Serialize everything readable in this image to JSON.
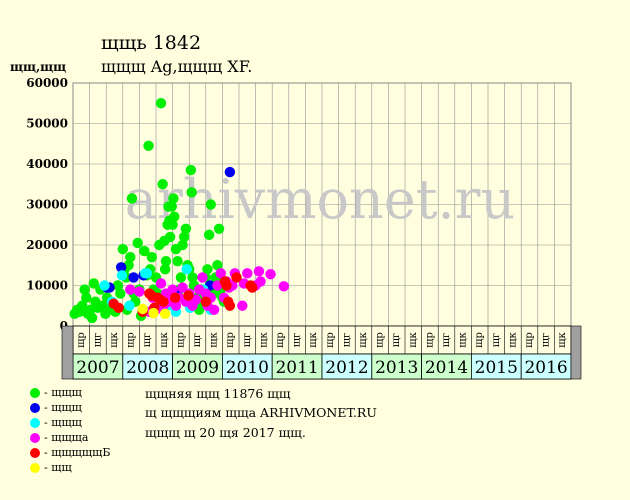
{
  "header": {
    "title": "щщь 1842",
    "subtitle": "щщщ Ag,щщщ XF.",
    "ylabel": "щщ,щщ"
  },
  "legend": [
    {
      "label": "- щщщ",
      "color": "#00ee00",
      "icon": "green-dot"
    },
    {
      "label": "- щщщ",
      "color": "#0000ee",
      "icon": "blue-dot"
    },
    {
      "label": "- щщщ",
      "color": "#00ffff",
      "icon": "cyan-dot"
    },
    {
      "label": "- щщща",
      "color": "#ff00ff",
      "icon": "magenta-dot"
    },
    {
      "label": "- щщщщщБ",
      "color": "#ff0000",
      "icon": "red-dot"
    },
    {
      "label": "- щщ",
      "color": "#ffff00",
      "icon": "yellow-dot"
    }
  ],
  "info": {
    "line1": "щщняя щщ 11876 щщ",
    "line2": "щ щщщиям щщa ARHIVMONET.RU",
    "line3": "щщщ щ 20 щя 2017 щщ."
  },
  "watermark": "arhivmonet.ru",
  "chart_data": {
    "type": "scatter",
    "ylim": [
      0,
      60000
    ],
    "yticks": [
      0,
      10000,
      20000,
      30000,
      40000,
      50000,
      60000
    ],
    "years": [
      "2007",
      "2008",
      "2009",
      "2010",
      "2011",
      "2012",
      "2013",
      "2014",
      "2015",
      "2016"
    ],
    "year_colors": [
      "#ccffcc",
      "#ccffff",
      "#ccffcc",
      "#ccffff",
      "#ccffcc",
      "#ccffff",
      "#ccffcc",
      "#ccffcc",
      "#ccffff",
      "#ccffff"
    ],
    "quarter_labels": [
      "щр",
      "щг",
      "щк"
    ],
    "grid": true,
    "series": [
      {
        "color": "#00ee00",
        "points": [
          [
            0.1,
            3000
          ],
          [
            0.25,
            4000
          ],
          [
            0.4,
            3500
          ],
          [
            0.55,
            5000
          ],
          [
            0.7,
            9000
          ],
          [
            0.8,
            7000
          ],
          [
            0.9,
            3000
          ],
          [
            1.05,
            4000
          ],
          [
            1.15,
            2000
          ],
          [
            1.25,
            10500
          ],
          [
            1.35,
            6000
          ],
          [
            1.5,
            4500
          ],
          [
            1.65,
            9000
          ],
          [
            1.8,
            5000
          ],
          [
            1.95,
            3000
          ],
          [
            2.05,
            7000
          ],
          [
            2.15,
            4000
          ],
          [
            2.25,
            6000
          ],
          [
            2.4,
            5000
          ],
          [
            2.55,
            3500
          ],
          [
            2.7,
            10000
          ],
          [
            2.85,
            8000
          ],
          [
            3.0,
            19000
          ],
          [
            3.1,
            14000
          ],
          [
            3.2,
            12000
          ],
          [
            3.25,
            4000
          ],
          [
            3.35,
            15000
          ],
          [
            3.45,
            17000
          ],
          [
            3.55,
            31500
          ],
          [
            3.65,
            8000
          ],
          [
            3.75,
            6000
          ],
          [
            3.9,
            20500
          ],
          [
            4.0,
            9000
          ],
          [
            4.1,
            2500
          ],
          [
            4.2,
            4000
          ],
          [
            4.3,
            18500
          ],
          [
            4.45,
            12500
          ],
          [
            4.55,
            44500
          ],
          [
            4.65,
            14000
          ],
          [
            4.75,
            17000
          ],
          [
            4.85,
            9000
          ],
          [
            5.0,
            12000
          ],
          [
            5.1,
            8000
          ],
          [
            5.2,
            20000
          ],
          [
            5.3,
            55000
          ],
          [
            5.4,
            35000
          ],
          [
            5.5,
            21000
          ],
          [
            5.55,
            14000
          ],
          [
            5.6,
            16000
          ],
          [
            5.7,
            25000
          ],
          [
            5.75,
            29500
          ],
          [
            5.8,
            26000
          ],
          [
            5.85,
            22000
          ],
          [
            5.95,
            29500
          ],
          [
            6.0,
            25000
          ],
          [
            6.05,
            31500
          ],
          [
            6.1,
            27000
          ],
          [
            6.2,
            19000
          ],
          [
            6.3,
            16000
          ],
          [
            6.4,
            9000
          ],
          [
            6.5,
            12000
          ],
          [
            6.6,
            20000
          ],
          [
            6.7,
            22000
          ],
          [
            6.8,
            24000
          ],
          [
            6.9,
            15000
          ],
          [
            7.0,
            14000
          ],
          [
            7.1,
            38500
          ],
          [
            7.15,
            33000
          ],
          [
            7.2,
            12000
          ],
          [
            7.3,
            10000
          ],
          [
            7.4,
            5000
          ],
          [
            7.5,
            7000
          ],
          [
            7.6,
            4000
          ],
          [
            7.7,
            9000
          ],
          [
            7.8,
            8000
          ],
          [
            7.9,
            6000
          ],
          [
            8.0,
            12000
          ],
          [
            8.1,
            14000
          ],
          [
            8.2,
            22500
          ],
          [
            8.3,
            30000
          ],
          [
            8.4,
            10000
          ],
          [
            8.5,
            8000
          ],
          [
            8.6,
            12000
          ],
          [
            8.7,
            15000
          ],
          [
            8.8,
            24000
          ],
          [
            8.9,
            9000
          ],
          [
            9.0,
            7000
          ],
          [
            9.1,
            6000
          ]
        ]
      },
      {
        "color": "#0000ee",
        "points": [
          [
            2.05,
            9500
          ],
          [
            2.2,
            9500
          ],
          [
            2.9,
            14500
          ],
          [
            3.65,
            12000
          ],
          [
            4.25,
            12500
          ],
          [
            6.2,
            8000
          ],
          [
            8.25,
            10000
          ],
          [
            9.45,
            38000
          ]
        ]
      },
      {
        "color": "#00ffff",
        "points": [
          [
            1.9,
            10000
          ],
          [
            2.35,
            6000
          ],
          [
            2.95,
            12500
          ],
          [
            3.4,
            5000
          ],
          [
            4.35,
            13000
          ],
          [
            4.45,
            13000
          ],
          [
            5.7,
            5000
          ],
          [
            6.2,
            3500
          ],
          [
            6.85,
            14000
          ],
          [
            7.05,
            4500
          ],
          [
            7.85,
            9000
          ],
          [
            8.3,
            4000
          ]
        ]
      },
      {
        "color": "#ff00ff",
        "points": [
          [
            3.45,
            9000
          ],
          [
            4.0,
            8500
          ],
          [
            4.6,
            3500
          ],
          [
            4.8,
            7000
          ],
          [
            5.0,
            4000
          ],
          [
            5.3,
            10500
          ],
          [
            5.45,
            5000
          ],
          [
            5.6,
            8000
          ],
          [
            5.8,
            6000
          ],
          [
            6.0,
            9000
          ],
          [
            6.2,
            5000
          ],
          [
            6.4,
            7000
          ],
          [
            6.6,
            9500
          ],
          [
            6.8,
            6000
          ],
          [
            7.0,
            8000
          ],
          [
            7.2,
            5000
          ],
          [
            7.4,
            6500
          ],
          [
            7.6,
            9000
          ],
          [
            7.8,
            12000
          ],
          [
            8.0,
            8000
          ],
          [
            8.1,
            5000
          ],
          [
            8.3,
            7000
          ],
          [
            8.5,
            4000
          ],
          [
            8.7,
            10000
          ],
          [
            8.9,
            13000
          ],
          [
            9.1,
            7000
          ],
          [
            9.25,
            11000
          ],
          [
            9.4,
            9500
          ],
          [
            9.6,
            10000
          ],
          [
            9.75,
            13000
          ],
          [
            10.2,
            5000
          ],
          [
            10.3,
            10500
          ],
          [
            10.5,
            13000
          ],
          [
            11.0,
            10000
          ],
          [
            11.2,
            13500
          ],
          [
            11.3,
            11000
          ],
          [
            11.9,
            12800
          ],
          [
            12.7,
            9800
          ]
        ]
      },
      {
        "color": "#ff0000",
        "points": [
          [
            2.45,
            5500
          ],
          [
            2.75,
            4500
          ],
          [
            4.2,
            3500
          ],
          [
            4.6,
            8000
          ],
          [
            4.75,
            7500
          ],
          [
            4.9,
            4500
          ],
          [
            5.1,
            7000
          ],
          [
            5.25,
            6500
          ],
          [
            5.45,
            6000
          ],
          [
            6.15,
            7000
          ],
          [
            6.95,
            7500
          ],
          [
            8.0,
            6000
          ],
          [
            9.15,
            11000
          ],
          [
            9.25,
            10000
          ],
          [
            9.35,
            6000
          ],
          [
            9.45,
            5000
          ],
          [
            9.85,
            12000
          ],
          [
            10.7,
            10000
          ],
          [
            10.8,
            9500
          ]
        ]
      },
      {
        "color": "#ffff00",
        "points": [
          [
            4.2,
            4200
          ],
          [
            4.85,
            3200
          ],
          [
            5.55,
            3000
          ]
        ]
      }
    ]
  }
}
